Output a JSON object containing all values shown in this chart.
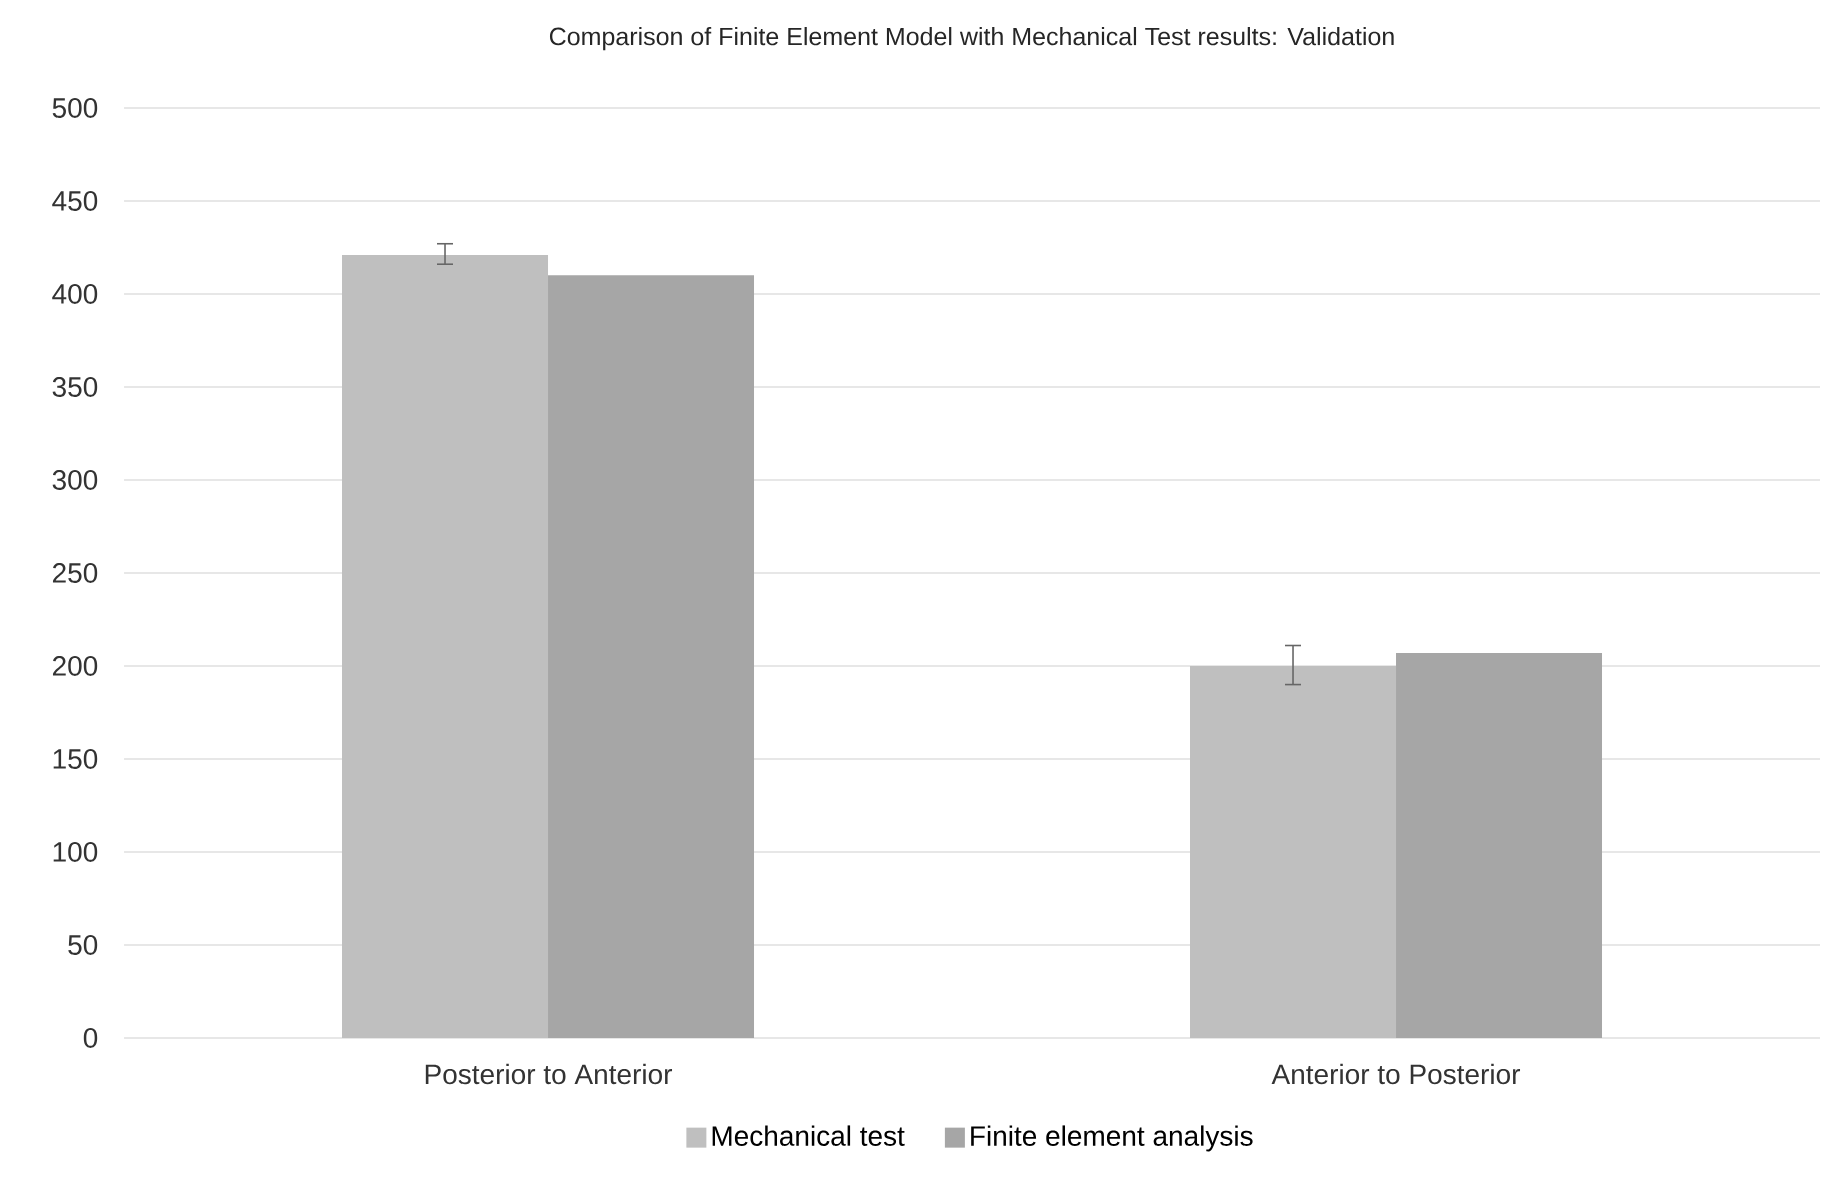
{
  "chart_data": {
    "type": "bar",
    "title": "Comparison of Finite Element Model with Mechanical Test results: Validation",
    "categories": [
      "Posterior to Anterior",
      "Anterior to Posterior"
    ],
    "series": [
      {
        "name": "Mechanical test",
        "color": "#bfbfbf",
        "values": [
          421,
          200
        ],
        "errors": [
          [
            416,
            427
          ],
          [
            190,
            211
          ]
        ]
      },
      {
        "name": "Finite element analysis",
        "color": "#a6a6a6",
        "values": [
          410,
          207
        ]
      }
    ],
    "ylim": [
      0,
      500
    ],
    "yticks": [
      0,
      50,
      100,
      150,
      200,
      250,
      300,
      350,
      400,
      450,
      500
    ],
    "grid": "y",
    "legend": "bottom"
  }
}
